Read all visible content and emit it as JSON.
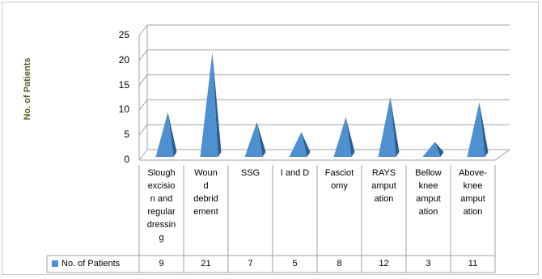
{
  "chart_data": {
    "type": "bar",
    "style": "3d-pyramid",
    "ylabel": "No. of Patients",
    "ylim": [
      0,
      25
    ],
    "yticks": [
      0,
      5,
      10,
      15,
      20,
      25
    ],
    "grid": true,
    "categories": [
      "Slough excision and regular dressing",
      "Wound debridement",
      "SSG",
      "I and D",
      "Fasciotomy",
      "RAYS amputation",
      "Bellow knee amputation",
      "Above-knee amputation"
    ],
    "category_display": [
      "Slough\nexcisio\nn and\nregular\ndressin\ng",
      "Woun\nd\ndebrid\nement",
      "SSG",
      "I and D",
      "Fasciot\nomy",
      "RAYS\namput\nation",
      "Bellow\nknee\namput\nation",
      "Above-\nknee\namput\nation"
    ],
    "series": [
      {
        "name": "No. of Patients",
        "values": [
          9,
          21,
          7,
          5,
          8,
          12,
          3,
          11
        ]
      }
    ],
    "legend": "data-table",
    "colors": {
      "front": "#4f90d0",
      "side": "#2a5f93",
      "grid": "#a0a0a0"
    }
  }
}
